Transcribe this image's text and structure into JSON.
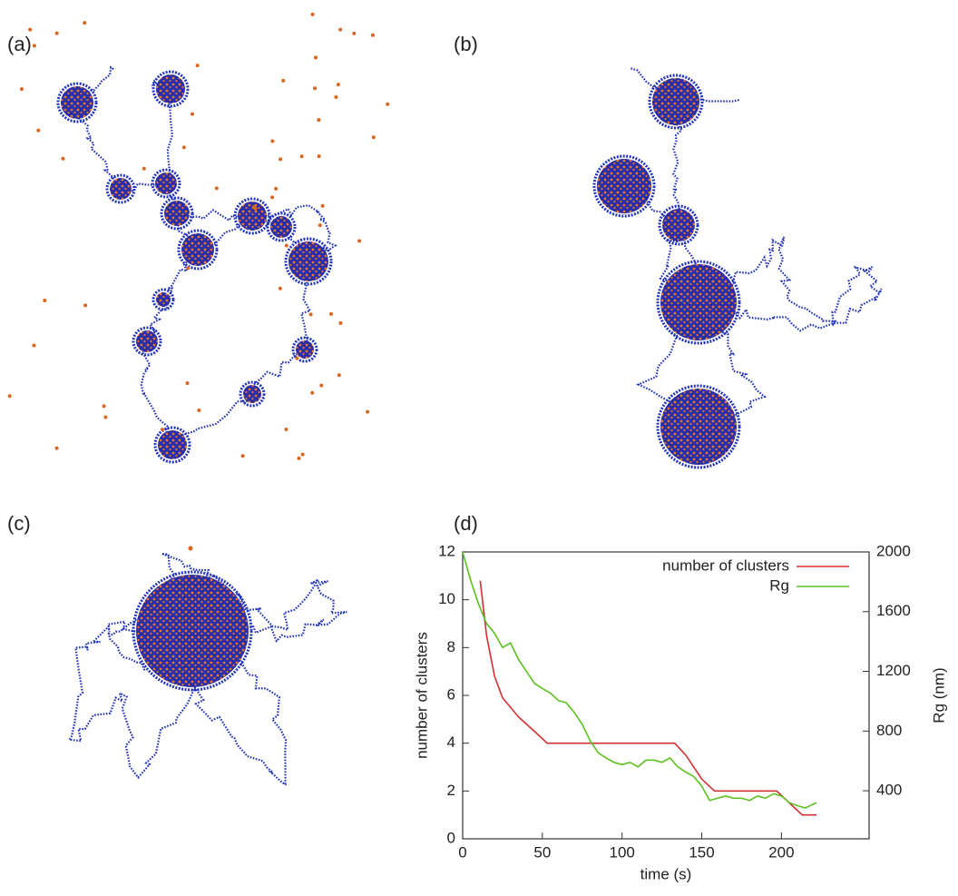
{
  "panel_labels": [
    "(a)",
    "(b)",
    "(c)",
    "(d)"
  ],
  "chart_data": {
    "type": "line",
    "xlabel": "time (s)",
    "ylabel": "number of clusters",
    "y2label": "Rg (nm)",
    "xlim": [
      0,
      255
    ],
    "ylim": [
      0,
      12
    ],
    "y2lim": [
      78,
      2000
    ],
    "xticks": [
      0,
      50,
      100,
      150,
      200
    ],
    "yticks": [
      0,
      2,
      4,
      6,
      8,
      10,
      12
    ],
    "y2ticks": [
      400,
      800,
      1200,
      1600,
      2000
    ],
    "legend": "upper right",
    "series": [
      {
        "name": "number of clusters",
        "color": "#d03030",
        "x": [
          11,
          15,
          20,
          25,
          30,
          35,
          40,
          45,
          53,
          133,
          140,
          150,
          158,
          197,
          213,
          222
        ],
        "values": [
          10.8,
          8.5,
          6.8,
          5.9,
          5.5,
          5.1,
          4.8,
          4.5,
          4,
          4,
          3.5,
          2.5,
          2,
          2,
          1,
          1
        ]
      },
      {
        "name": "Rg",
        "color": "#5cc020",
        "axis": "y2",
        "x": [
          0,
          5,
          10,
          15,
          20,
          25,
          30,
          35,
          40,
          45,
          50,
          55,
          60,
          65,
          70,
          75,
          80,
          85,
          90,
          95,
          100,
          105,
          110,
          115,
          120,
          125,
          130,
          135,
          140,
          145,
          150,
          155,
          160,
          165,
          170,
          175,
          180,
          185,
          190,
          195,
          200,
          205,
          210,
          215,
          222
        ],
        "values": [
          2000,
          1810,
          1650,
          1520,
          1455,
          1360,
          1390,
          1280,
          1200,
          1120,
          1085,
          1055,
          1005,
          990,
          925,
          845,
          735,
          655,
          620,
          590,
          575,
          590,
          560,
          605,
          605,
          590,
          620,
          560,
          525,
          495,
          430,
          335,
          350,
          365,
          350,
          350,
          335,
          365,
          350,
          380,
          365,
          320,
          300,
          285,
          320
        ]
      }
    ]
  }
}
